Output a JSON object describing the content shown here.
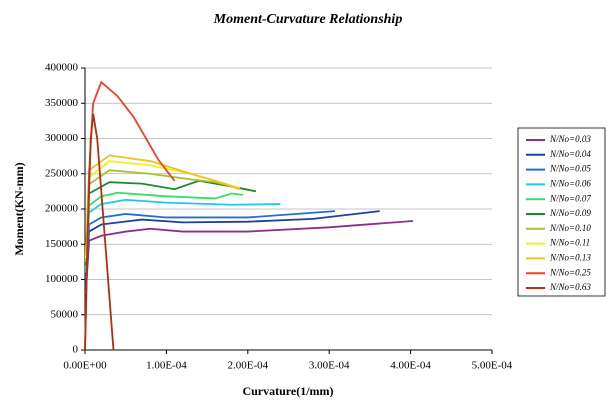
{
  "chart_data": {
    "type": "line",
    "title": "Moment-Curvature Relationship",
    "x_label": "Curvature(1/mm)",
    "y_label": "Moment(KN-mm)",
    "xlim": [
      0,
      0.0005
    ],
    "ylim": [
      0,
      400000
    ],
    "xticks": [
      {
        "value": 0,
        "label": "0.00E+00"
      },
      {
        "value": 0.0001,
        "label": "1.00E-04"
      },
      {
        "value": 0.0002,
        "label": "2.00E-04"
      },
      {
        "value": 0.0003,
        "label": "3.00E-04"
      },
      {
        "value": 0.0004,
        "label": "4.00E-04"
      },
      {
        "value": 0.0005,
        "label": "5.00E-04"
      }
    ],
    "yticks": [
      0,
      50000,
      100000,
      150000,
      200000,
      250000,
      300000,
      350000,
      400000
    ],
    "grid": true,
    "legend": "right",
    "series": [
      {
        "name": "N/No=0.03",
        "color": "#8b2e8b",
        "x": [
          1e-06,
          5e-06,
          2e-05,
          5e-05,
          8e-05,
          0.00012,
          0.0002,
          0.0003,
          0.000403
        ],
        "values": [
          80000,
          155000,
          162000,
          168000,
          172000,
          168000,
          168000,
          174000,
          183000
        ]
      },
      {
        "name": "N/No=0.04",
        "color": "#1f3f9f",
        "x": [
          1e-06,
          5e-06,
          2e-05,
          7e-05,
          0.00012,
          0.0002,
          0.00028,
          0.000362
        ],
        "values": [
          90000,
          168000,
          178000,
          185000,
          181000,
          182000,
          186000,
          197000
        ]
      },
      {
        "name": "N/No=0.05",
        "color": "#1e6fd9",
        "x": [
          1e-06,
          5e-06,
          2e-05,
          5e-05,
          0.0001,
          0.0002,
          0.000307
        ],
        "values": [
          100000,
          178000,
          188000,
          193000,
          188000,
          188000,
          197000
        ]
      },
      {
        "name": "N/No=0.06",
        "color": "#22c8f0",
        "x": [
          1e-06,
          5e-06,
          2e-05,
          5e-05,
          0.0001,
          0.00018,
          0.00024
        ],
        "values": [
          110000,
          195000,
          207000,
          213000,
          209000,
          206000,
          207000
        ]
      },
      {
        "name": "N/No=0.07",
        "color": "#33e060",
        "x": [
          1e-06,
          5e-06,
          2e-05,
          4e-05,
          0.0001,
          0.00016,
          0.00018,
          0.000194
        ],
        "values": [
          115000,
          205000,
          218000,
          223000,
          218000,
          215000,
          222000,
          220000
        ]
      },
      {
        "name": "N/No=0.09",
        "color": "#1a8a2a",
        "x": [
          1e-06,
          5e-06,
          3e-05,
          7e-05,
          0.00011,
          0.00014,
          0.00018,
          0.00021
        ],
        "values": [
          120000,
          222000,
          238000,
          236000,
          228000,
          240000,
          232000,
          225000
        ]
      },
      {
        "name": "N/No=0.10",
        "color": "#a8c030",
        "x": [
          1e-06,
          5e-06,
          3e-05,
          8e-05,
          0.00013,
          0.00016,
          0.00019
        ],
        "values": [
          125000,
          235000,
          255000,
          250000,
          242000,
          238000,
          230000
        ]
      },
      {
        "name": "N/No=0.11",
        "color": "#f0f020",
        "x": [
          1e-06,
          5e-06,
          3e-05,
          8e-05,
          0.00013,
          0.00016,
          0.00019
        ],
        "values": [
          130000,
          245000,
          268000,
          262000,
          250000,
          240000,
          230000
        ]
      },
      {
        "name": "N/No=0.13",
        "color": "#f0c020",
        "x": [
          1e-06,
          5e-06,
          3e-05,
          8e-05,
          0.00013,
          0.00016,
          0.00019
        ],
        "values": [
          135000,
          255000,
          276000,
          268000,
          250000,
          240000,
          228000
        ]
      },
      {
        "name": "N/No=0.25",
        "color": "#f04020",
        "x": [
          0,
          5e-06,
          1e-05,
          2e-05,
          4e-05,
          6e-05,
          9e-05,
          0.00011
        ],
        "values": [
          0,
          250000,
          350000,
          380000,
          360000,
          330000,
          270000,
          240000
        ]
      },
      {
        "name": "N/No=0.63",
        "color": "#b03010",
        "x": [
          0,
          3e-06,
          7e-06,
          1e-05,
          1.5e-05,
          2.5e-05,
          3.5e-05
        ],
        "values": [
          0,
          150000,
          300000,
          335000,
          300000,
          150000,
          0
        ]
      }
    ]
  }
}
